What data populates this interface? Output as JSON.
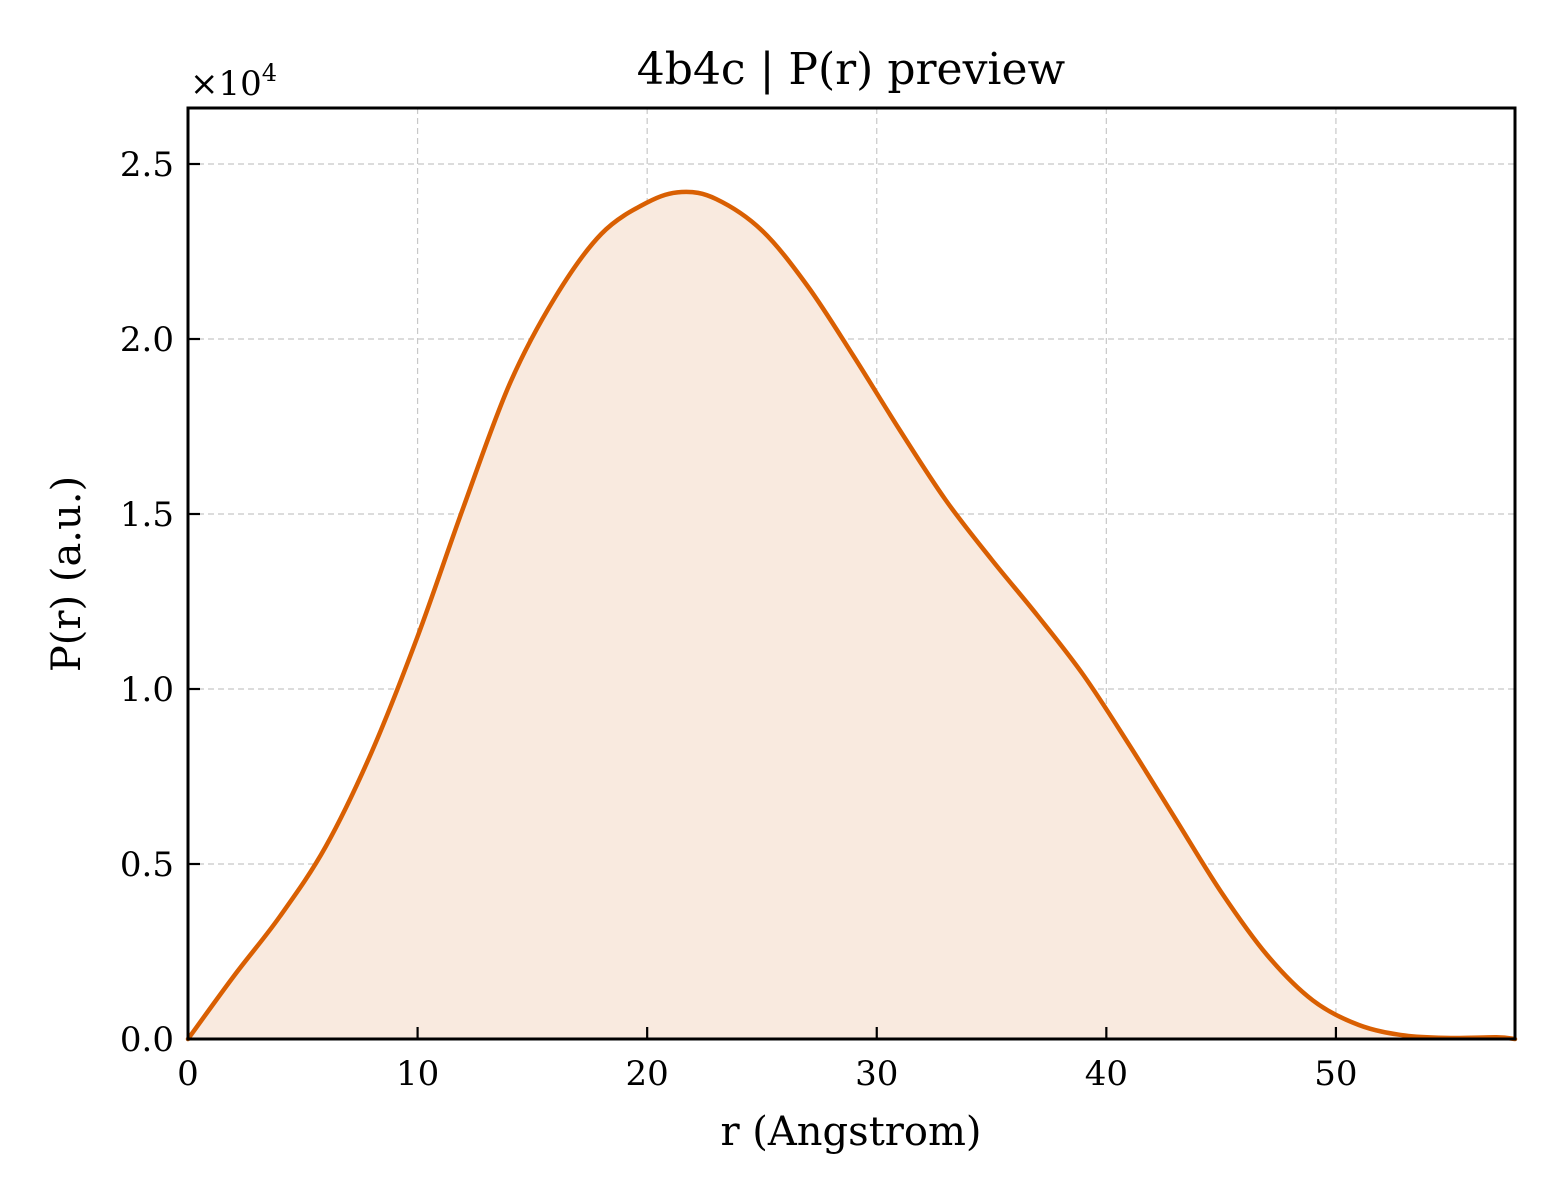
{
  "chart_data": {
    "type": "area",
    "title": "4b4c | P(r) preview",
    "xlabel": "r (Angstrom)",
    "ylabel": "P(r) (a.u.)",
    "y_multiplier_label": "×10",
    "y_multiplier_exponent": "4",
    "xlim": [
      0,
      57.8
    ],
    "ylim": [
      0,
      2.66
    ],
    "x_ticks": [
      0,
      10,
      20,
      30,
      40,
      50
    ],
    "x_tick_labels": [
      "0",
      "10",
      "20",
      "30",
      "40",
      "50"
    ],
    "y_ticks": [
      0,
      0.5,
      1.0,
      1.5,
      2.0,
      2.5
    ],
    "y_tick_labels": [
      "0.0",
      "0.5",
      "1.0",
      "1.5",
      "2.0",
      "2.5"
    ],
    "grid": true,
    "line_color": "#d95f02",
    "fill_color": "#f9eadf",
    "series": [
      {
        "x": [
          0,
          2,
          4,
          6,
          8,
          10,
          12,
          14,
          16,
          18,
          20,
          21.5,
          23,
          25,
          27,
          29,
          31,
          33,
          35,
          37,
          39,
          41,
          43,
          45,
          47,
          49,
          51,
          53,
          55,
          57,
          57.8
        ],
        "y": [
          0.0,
          0.18,
          0.35,
          0.55,
          0.82,
          1.15,
          1.52,
          1.87,
          2.12,
          2.3,
          2.39,
          2.42,
          2.4,
          2.31,
          2.15,
          1.95,
          1.74,
          1.54,
          1.37,
          1.21,
          1.04,
          0.84,
          0.63,
          0.42,
          0.24,
          0.11,
          0.04,
          0.01,
          0.003,
          0.005,
          0.0
        ]
      }
    ]
  }
}
